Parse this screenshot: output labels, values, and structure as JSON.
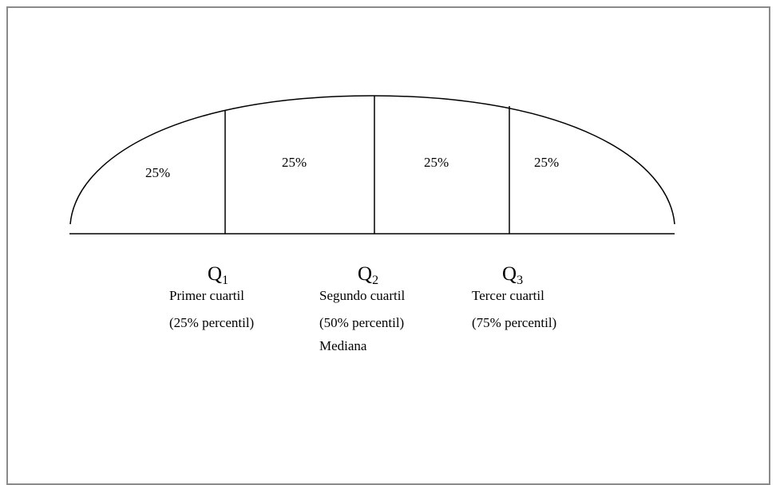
{
  "diagram": {
    "segments": [
      {
        "label": "25%"
      },
      {
        "label": "25%"
      },
      {
        "label": "25%"
      },
      {
        "label": "25%"
      }
    ],
    "quartiles": [
      {
        "symbol": "Q",
        "index": "1",
        "lines": [
          "Primer cuartil",
          "(25% percentil)"
        ]
      },
      {
        "symbol": "Q",
        "index": "2",
        "lines": [
          "Segundo cuartil",
          "(50% percentil)",
          "Mediana"
        ]
      },
      {
        "symbol": "Q",
        "index": "3",
        "lines": [
          "Tercer cuartil",
          "(75% percentil)"
        ]
      }
    ],
    "colors": {
      "line": "#000000",
      "frame_border": "#8a8a8a",
      "background": "#ffffff"
    }
  }
}
